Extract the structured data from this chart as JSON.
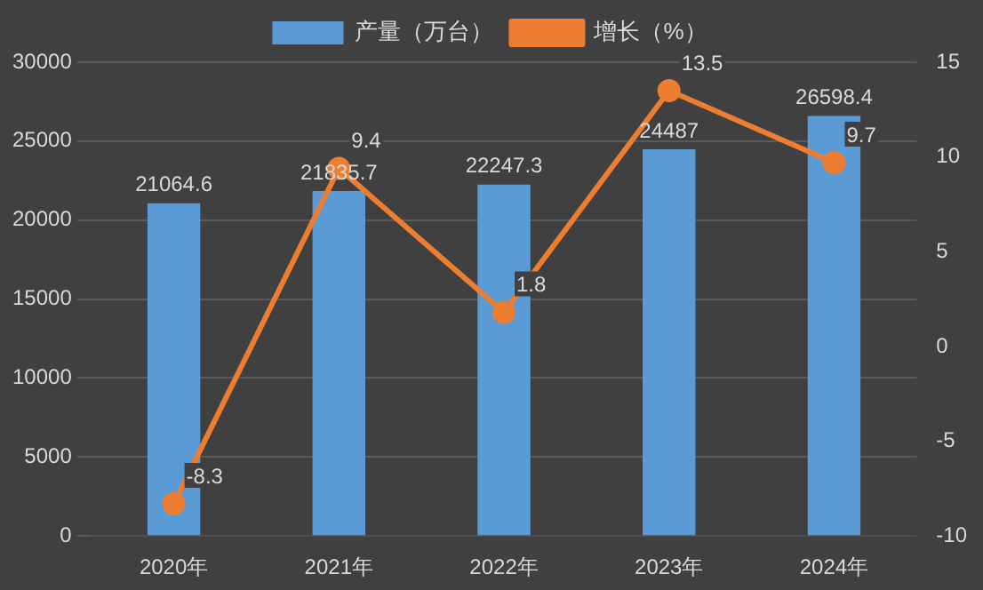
{
  "chart_data": {
    "type": "bar",
    "categories": [
      "2020年",
      "2021年",
      "2022年",
      "2023年",
      "2024年"
    ],
    "series": [
      {
        "name": "产量（万台）",
        "color": "#5b9bd5",
        "values": [
          21064.6,
          21835.7,
          22247.3,
          24487,
          26598.4
        ]
      },
      {
        "name": "增长（%）",
        "type": "line",
        "axis": "y2",
        "color": "#ed7d31",
        "values": [
          -8.3,
          9.4,
          1.8,
          13.5,
          9.7
        ]
      }
    ],
    "ylim": [
      0,
      30000
    ],
    "yticks": [
      0,
      5000,
      10000,
      15000,
      20000,
      25000,
      30000
    ],
    "y2lim": [
      -10,
      15
    ],
    "y2ticks": [
      -10,
      -5,
      0,
      5,
      10,
      15
    ],
    "grid": "y",
    "legend": "top",
    "marker": "circle",
    "data_labels": true
  }
}
